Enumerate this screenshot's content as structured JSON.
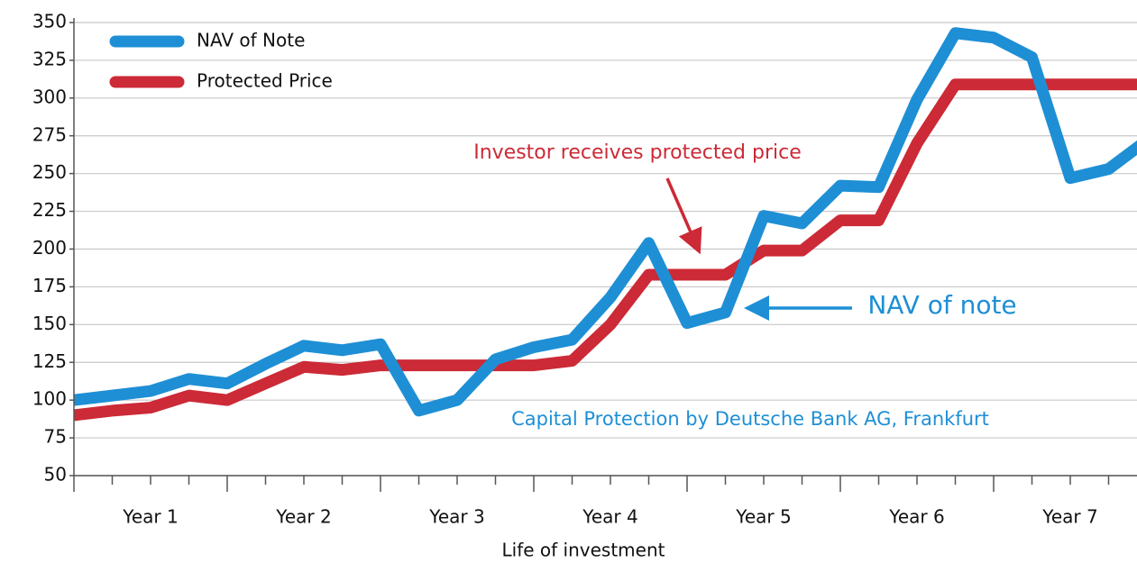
{
  "chart_data": {
    "type": "line",
    "x_label": "Life of investment",
    "categories": [
      null,
      null,
      null,
      null,
      null,
      null,
      null,
      null,
      null,
      null,
      null,
      null,
      null,
      null,
      null,
      null,
      null,
      null,
      null,
      null,
      null,
      null,
      null,
      null,
      null,
      null,
      null,
      null,
      null
    ],
    "x_groups": [
      "Year 1",
      "Year 2",
      "Year 3",
      "Year 4",
      "Year 5",
      "Year 6",
      "Year 7"
    ],
    "series": [
      {
        "name": "NAV of Note",
        "color": "#1e8fd5",
        "values": [
          100,
          103,
          106,
          114,
          111,
          124,
          136,
          133,
          137,
          93,
          100,
          127,
          135,
          140,
          168,
          204,
          151,
          158,
          222,
          217,
          242,
          241,
          299,
          343,
          340,
          327,
          247,
          253,
          272
        ]
      },
      {
        "name": "Protected Price",
        "color": "#cc2a36",
        "values": [
          90,
          93,
          95,
          103,
          100,
          111,
          122,
          120,
          123,
          123,
          123,
          123,
          123,
          126,
          150,
          183,
          183,
          183,
          199,
          199,
          219,
          219,
          270,
          309,
          309,
          309,
          309,
          309,
          309
        ]
      }
    ],
    "ylim": [
      50,
      350
    ],
    "yticks": [
      50,
      75,
      100,
      125,
      150,
      175,
      200,
      225,
      250,
      275,
      300,
      325,
      350
    ],
    "grid": true,
    "annotations": [
      "Investor receives protected price",
      "NAV of note",
      "Capital Protection by Deutsche Bank AG, Frankfurt"
    ]
  }
}
